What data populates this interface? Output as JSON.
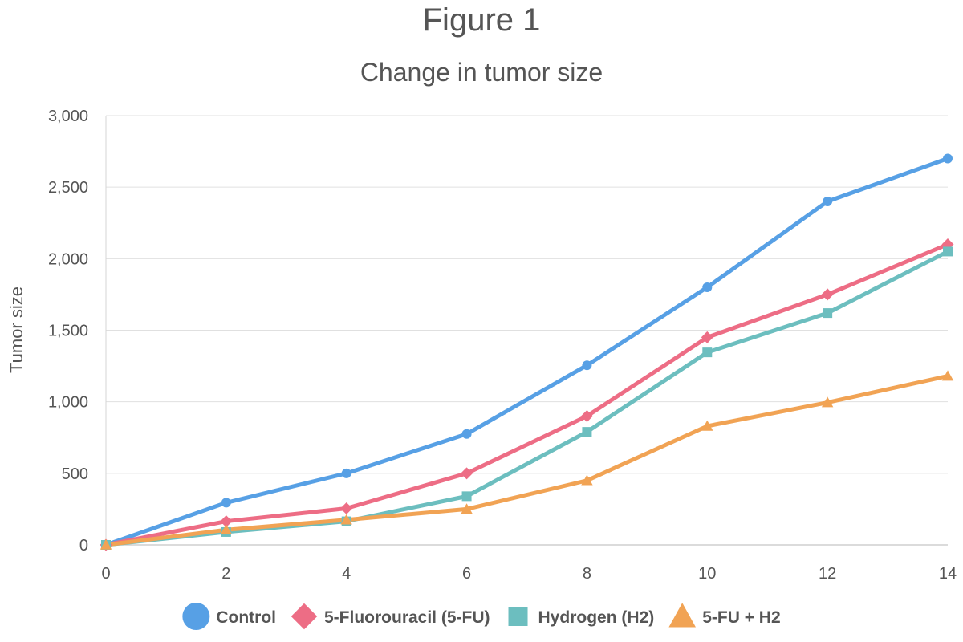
{
  "figure_title": "Figure 1",
  "chart_data": {
    "type": "line",
    "title": "Change in tumor size",
    "xlabel": "",
    "ylabel": "Tumor size",
    "x": [
      0,
      2,
      4,
      6,
      8,
      10,
      12,
      14
    ],
    "xlim": [
      0,
      14
    ],
    "ylim": [
      0,
      3000
    ],
    "x_ticks": [
      "0",
      "2",
      "4",
      "6",
      "8",
      "10",
      "12",
      "14"
    ],
    "y_ticks": [
      "0",
      "500",
      "1,000",
      "1,500",
      "2,000",
      "2,500",
      "3,000"
    ],
    "grid": "horizontal",
    "legend_position": "bottom",
    "series": [
      {
        "name": "Control",
        "values": [
          0,
          295,
          500,
          775,
          1255,
          1800,
          2400,
          2700
        ],
        "color": "#57A0E5",
        "marker": "circle"
      },
      {
        "name": "5-Fluorouracil (5-FU)",
        "values": [
          0,
          165,
          255,
          500,
          900,
          1450,
          1750,
          2100
        ],
        "color": "#ED6D85",
        "marker": "diamond"
      },
      {
        "name": "Hydrogen (H2)",
        "values": [
          0,
          90,
          165,
          340,
          790,
          1345,
          1620,
          2050
        ],
        "color": "#6CBEBF",
        "marker": "square"
      },
      {
        "name": "5-FU + H2",
        "values": [
          0,
          105,
          175,
          250,
          450,
          830,
          995,
          1180
        ],
        "color": "#F1A354",
        "marker": "triangle"
      }
    ]
  }
}
